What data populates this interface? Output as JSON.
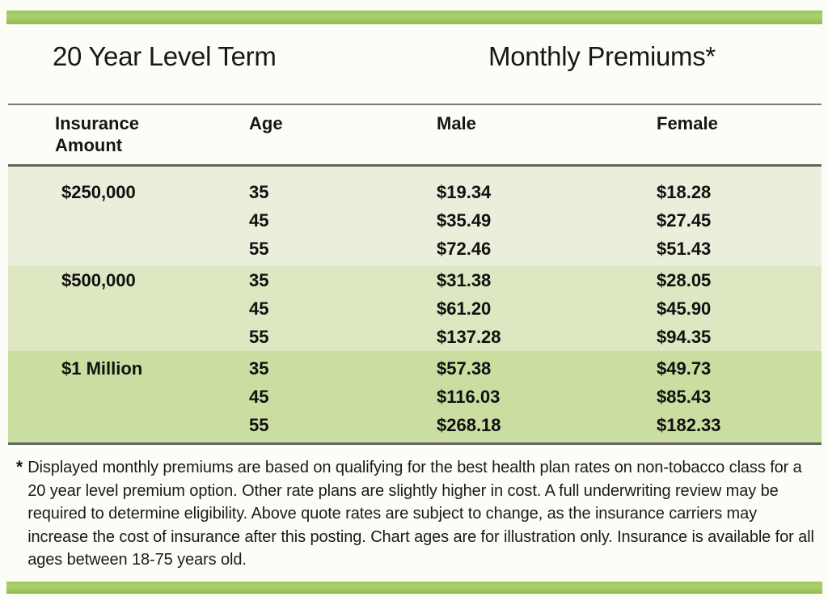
{
  "header": {
    "title_left": "20 Year Level Term",
    "title_right": "Monthly Premiums*"
  },
  "table": {
    "columns": [
      "Insurance Amount",
      "Age",
      "Male",
      "Female"
    ],
    "groups": [
      {
        "amount": "$250,000",
        "rows": [
          {
            "age": "35",
            "male": "$19.34",
            "female": "$18.28"
          },
          {
            "age": "45",
            "male": "$35.49",
            "female": "$27.45"
          },
          {
            "age": "55",
            "male": "$72.46",
            "female": "$51.43"
          }
        ]
      },
      {
        "amount": "$500,000",
        "rows": [
          {
            "age": "35",
            "male": "$31.38",
            "female": "$28.05"
          },
          {
            "age": "45",
            "male": "$61.20",
            "female": "$45.90"
          },
          {
            "age": "55",
            "male": "$137.28",
            "female": "$94.35"
          }
        ]
      },
      {
        "amount": "$1 Million",
        "rows": [
          {
            "age": "35",
            "male": "$57.38",
            "female": "$49.73"
          },
          {
            "age": "45",
            "male": "$116.03",
            "female": "$85.43"
          },
          {
            "age": "55",
            "male": "$268.18",
            "female": "$182.33"
          }
        ]
      }
    ]
  },
  "footnote": {
    "marker": "*",
    "text": "Displayed monthly premiums are based on qualifying for the best health plan rates on non-tobacco class for a 20 year level premium option. Other rate plans are slightly higher in cost. A full underwriting review may be required to determine eligibility. Above quote rates are subject to change, as the insurance carriers may increase the cost of insurance after this posting. Chart ages are for illustration only. Insurance is available for all ages between 18-75 years old."
  },
  "colors": {
    "accent_bar": "#9cc65c",
    "row_band_250k": "#eaefdb",
    "row_band_500k": "#dde7c2",
    "row_band_1m": "#cbdea2",
    "rule": "#646464"
  }
}
